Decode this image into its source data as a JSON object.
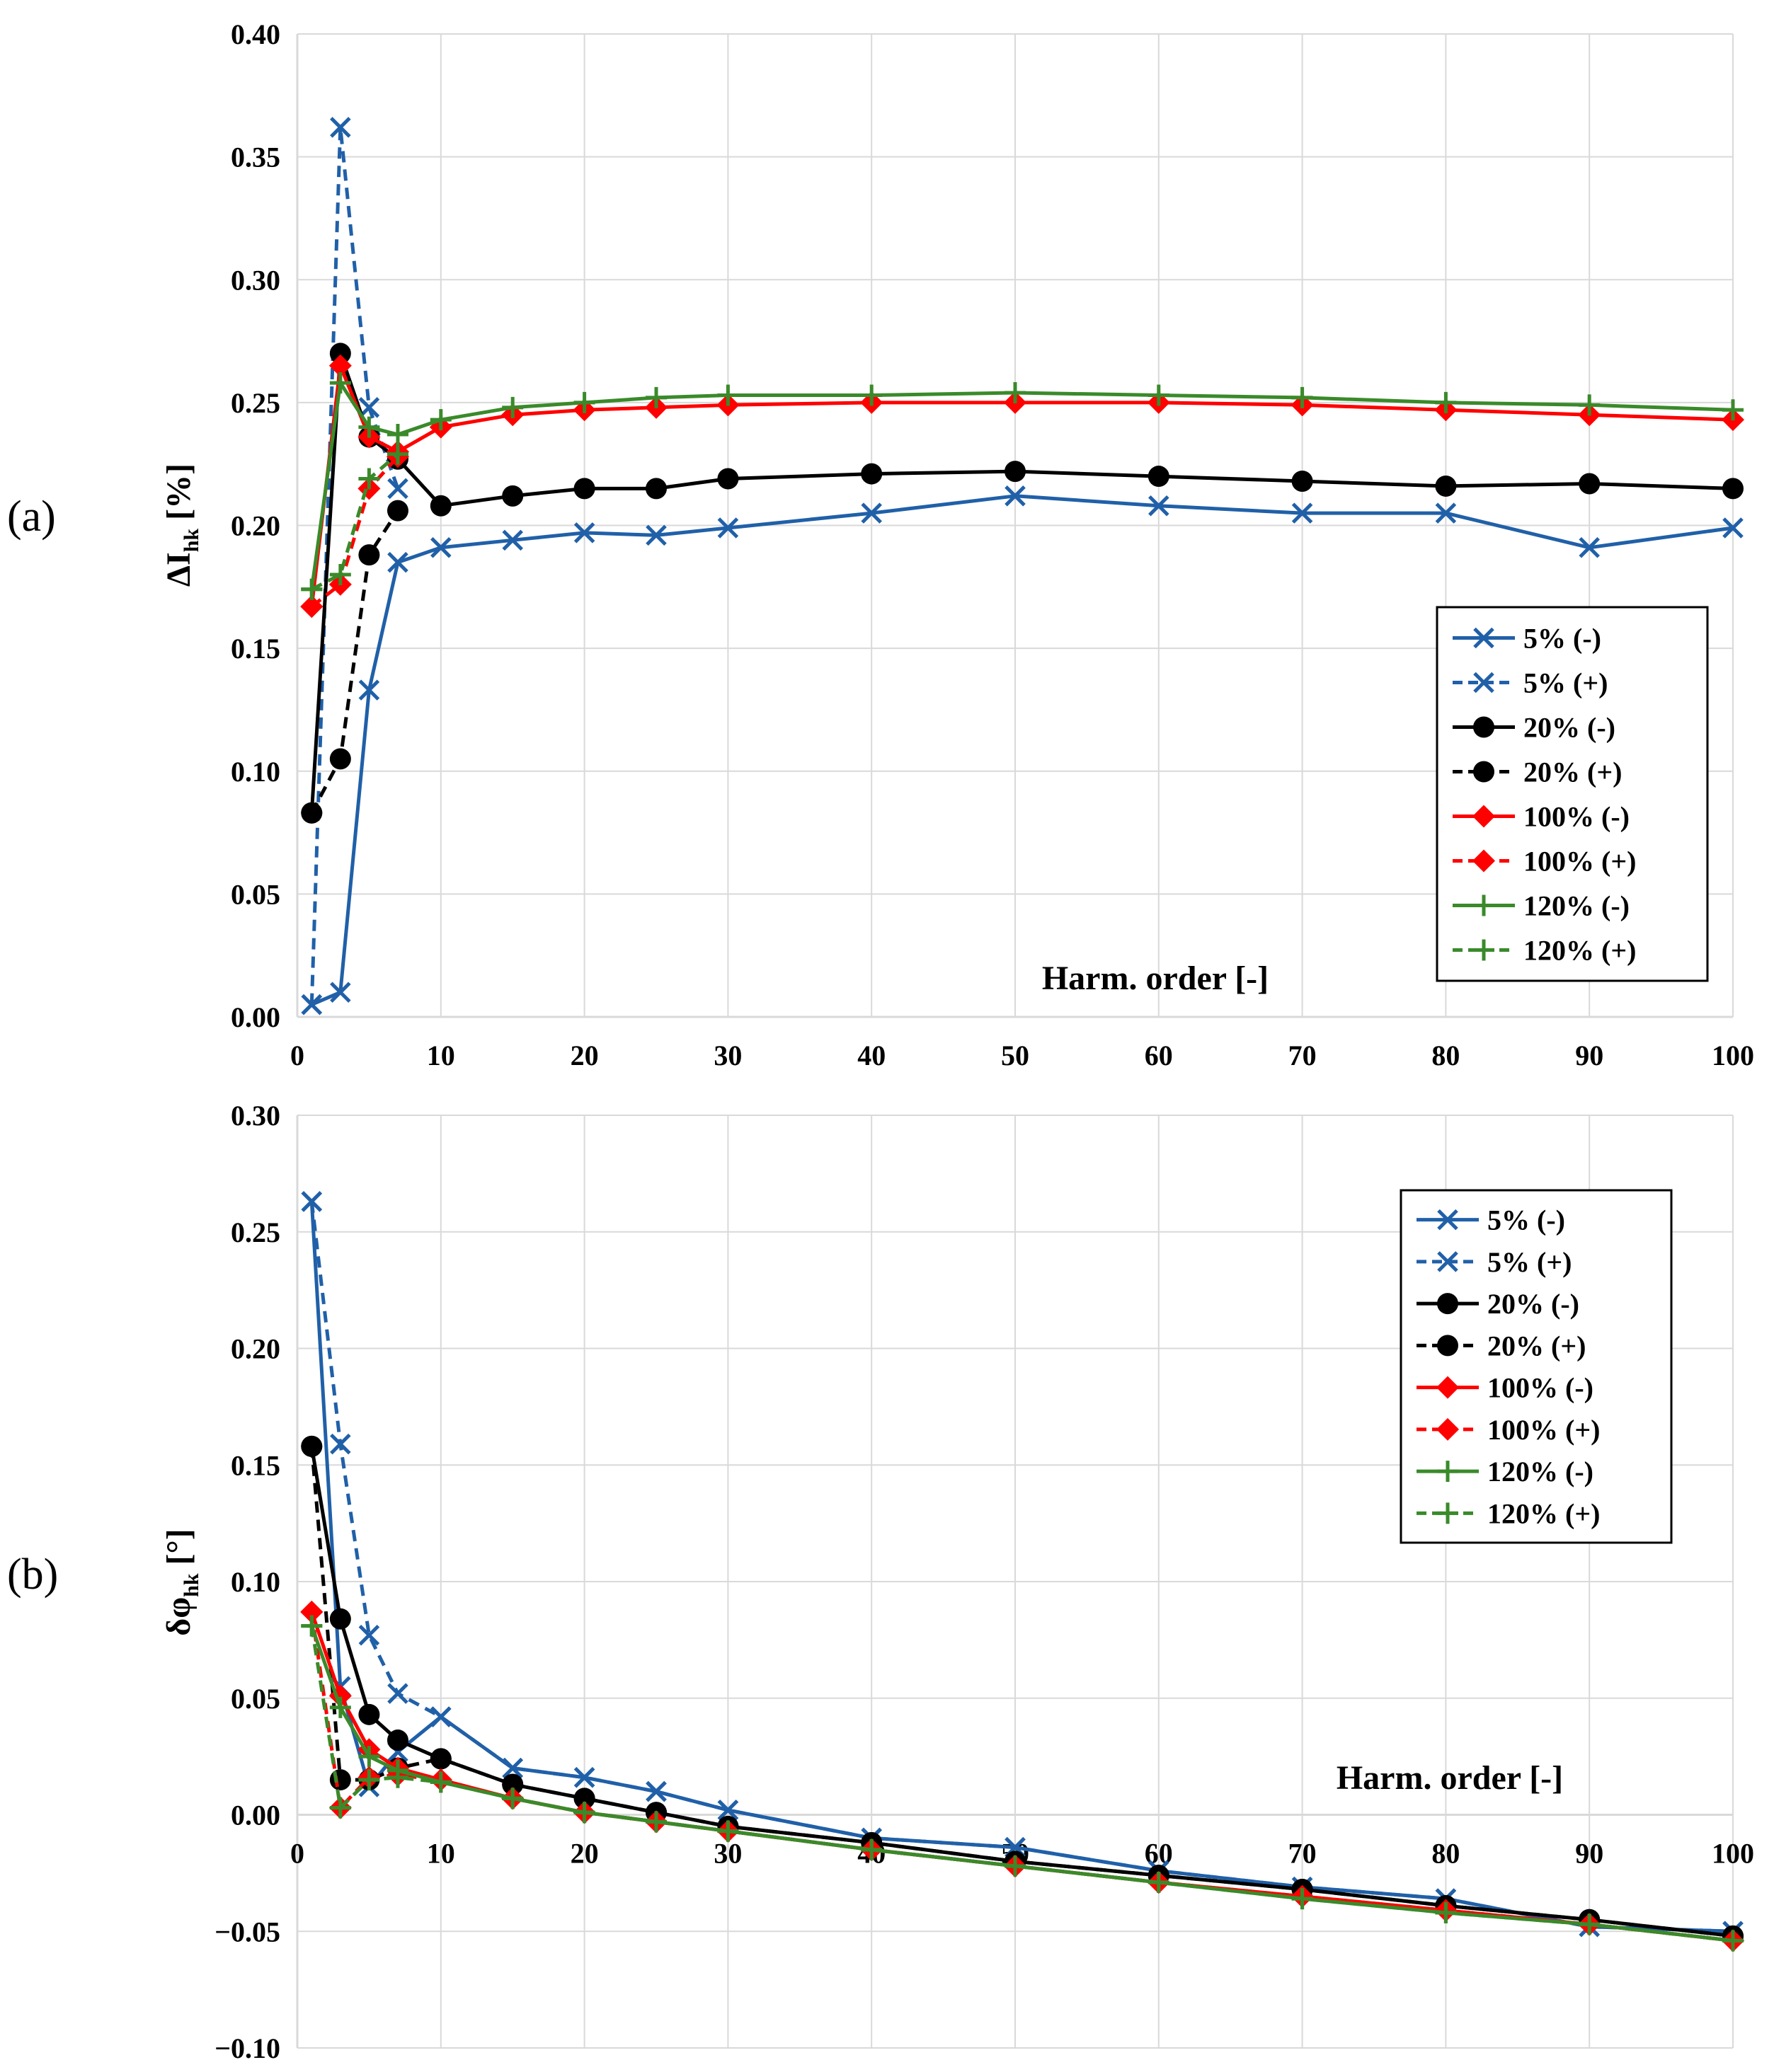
{
  "colors": {
    "blue": "#2060A8",
    "black": "#000000",
    "red": "#FF0000",
    "green": "#3A8A2A",
    "grid": "#D9D9D9"
  },
  "chart_data": [
    {
      "type": "line",
      "panel_label": "(a)",
      "ylabel_main": "ΔI",
      "ylabel_sub": "hk",
      "ylabel_unit": " [%]",
      "xlabel": "Harm. order [-]",
      "xlim": [
        0,
        100
      ],
      "ylim": [
        0,
        0.4
      ],
      "xticks": [
        0,
        10,
        20,
        30,
        40,
        50,
        60,
        70,
        80,
        90,
        100
      ],
      "yticks": [
        0,
        0.05,
        0.1,
        0.15,
        0.2,
        0.25,
        0.3,
        0.35,
        0.4
      ],
      "xtick_labels": [
        "0",
        "10",
        "20",
        "30",
        "40",
        "50",
        "60",
        "70",
        "80",
        "90",
        "100"
      ],
      "ytick_labels": [
        "0.00",
        "0.05",
        "0.10",
        "0.15",
        "0.20",
        "0.25",
        "0.30",
        "0.35",
        "0.40"
      ],
      "grid": true,
      "legend_position": "right",
      "x": [
        1,
        3,
        5,
        7,
        10,
        15,
        20,
        25,
        30,
        40,
        50,
        60,
        70,
        80,
        90,
        100
      ],
      "series": [
        {
          "name": "5% (-)",
          "color": "blue",
          "dash": false,
          "marker": "x",
          "values": [
            0.005,
            0.01,
            0.133,
            0.185,
            0.191,
            0.194,
            0.197,
            0.196,
            0.199,
            0.205,
            0.212,
            0.208,
            0.205,
            0.205,
            0.191,
            0.199
          ]
        },
        {
          "name": "5% (+)",
          "color": "blue",
          "dash": true,
          "marker": "x",
          "values": [
            0.005,
            0.362,
            0.248,
            0.215,
            null,
            null,
            null,
            null,
            null,
            null,
            null,
            null,
            null,
            null,
            null,
            null
          ]
        },
        {
          "name": "20% (-)",
          "color": "black",
          "dash": false,
          "marker": "circle",
          "values": [
            0.083,
            0.27,
            0.236,
            0.227,
            0.208,
            0.212,
            0.215,
            0.215,
            0.219,
            0.221,
            0.222,
            0.22,
            0.218,
            0.216,
            0.217,
            0.215
          ]
        },
        {
          "name": "20% (+)",
          "color": "black",
          "dash": true,
          "marker": "circle",
          "values": [
            0.083,
            0.105,
            0.188,
            0.206,
            null,
            null,
            null,
            null,
            null,
            null,
            null,
            null,
            null,
            null,
            null,
            null
          ]
        },
        {
          "name": "100% (-)",
          "color": "red",
          "dash": false,
          "marker": "diamond",
          "values": [
            0.167,
            0.265,
            0.236,
            0.23,
            0.24,
            0.245,
            0.247,
            0.248,
            0.249,
            0.25,
            0.25,
            0.25,
            0.249,
            0.247,
            0.245,
            0.243
          ]
        },
        {
          "name": "100% (+)",
          "color": "red",
          "dash": true,
          "marker": "diamond",
          "values": [
            0.167,
            0.176,
            0.215,
            0.228,
            null,
            null,
            null,
            null,
            null,
            null,
            null,
            null,
            null,
            null,
            null,
            null
          ]
        },
        {
          "name": "120% (-)",
          "color": "green",
          "dash": false,
          "marker": "plus",
          "values": [
            0.174,
            0.258,
            0.24,
            0.237,
            0.243,
            0.248,
            0.25,
            0.252,
            0.253,
            0.253,
            0.254,
            0.253,
            0.252,
            0.25,
            0.249,
            0.247
          ]
        },
        {
          "name": "120% (+)",
          "color": "green",
          "dash": true,
          "marker": "plus",
          "values": [
            0.174,
            0.18,
            0.219,
            0.229,
            null,
            null,
            null,
            null,
            null,
            null,
            null,
            null,
            null,
            null,
            null,
            null
          ]
        }
      ]
    },
    {
      "type": "line",
      "panel_label": "(b)",
      "ylabel_main": "δφ",
      "ylabel_sub": "hk",
      "ylabel_unit": " [°]",
      "xlabel": "Harm. order [-]",
      "xlim": [
        0,
        100
      ],
      "ylim": [
        -0.1,
        0.3
      ],
      "xticks": [
        0,
        10,
        20,
        30,
        40,
        50,
        60,
        70,
        80,
        90,
        100
      ],
      "yticks": [
        -0.1,
        -0.05,
        0,
        0.05,
        0.1,
        0.15,
        0.2,
        0.25,
        0.3
      ],
      "xtick_labels": [
        "0",
        "10",
        "20",
        "30",
        "40",
        "50",
        "60",
        "70",
        "80",
        "90",
        "100"
      ],
      "ytick_labels": [
        "−0.10",
        "−0.05",
        "0.00",
        "0.05",
        "0.10",
        "0.15",
        "0.20",
        "0.25",
        "0.30"
      ],
      "grid": true,
      "legend_position": "top-right",
      "x": [
        1,
        3,
        5,
        7,
        10,
        15,
        20,
        25,
        30,
        40,
        50,
        60,
        70,
        80,
        90,
        100
      ],
      "series": [
        {
          "name": "5% (-)",
          "color": "blue",
          "dash": false,
          "marker": "x",
          "values": [
            0.263,
            0.055,
            0.012,
            0.027,
            0.042,
            0.02,
            0.016,
            0.01,
            0.002,
            -0.01,
            -0.014,
            -0.024,
            -0.031,
            -0.036,
            -0.048,
            -0.05
          ]
        },
        {
          "name": "5% (+)",
          "color": "blue",
          "dash": true,
          "marker": "x",
          "values": [
            0.263,
            0.159,
            0.077,
            0.052,
            0.042,
            0.02,
            0.016,
            0.01,
            0.002,
            -0.01,
            -0.014,
            -0.024,
            -0.031,
            -0.036,
            -0.048,
            -0.05
          ]
        },
        {
          "name": "20% (-)",
          "color": "black",
          "dash": false,
          "marker": "circle",
          "values": [
            0.158,
            0.084,
            0.043,
            0.032,
            0.024,
            0.013,
            0.007,
            0.001,
            -0.005,
            -0.012,
            -0.02,
            -0.026,
            -0.032,
            -0.039,
            -0.045,
            -0.052
          ]
        },
        {
          "name": "20% (+)",
          "color": "black",
          "dash": true,
          "marker": "circle",
          "values": [
            0.158,
            0.015,
            0.015,
            0.02,
            0.024,
            0.013,
            0.007,
            0.001,
            -0.005,
            -0.012,
            -0.02,
            -0.026,
            -0.032,
            -0.039,
            -0.045,
            -0.052
          ]
        },
        {
          "name": "100% (-)",
          "color": "red",
          "dash": false,
          "marker": "diamond",
          "values": [
            0.087,
            0.051,
            0.028,
            0.02,
            0.015,
            0.007,
            0.001,
            -0.003,
            -0.007,
            -0.015,
            -0.022,
            -0.029,
            -0.035,
            -0.041,
            -0.047,
            -0.054
          ]
        },
        {
          "name": "100% (+)",
          "color": "red",
          "dash": true,
          "marker": "diamond",
          "values": [
            0.087,
            0.003,
            0.016,
            0.017,
            0.015,
            0.007,
            0.001,
            -0.003,
            -0.007,
            -0.015,
            -0.022,
            -0.029,
            -0.035,
            -0.041,
            -0.047,
            -0.054
          ]
        },
        {
          "name": "120% (-)",
          "color": "green",
          "dash": false,
          "marker": "plus",
          "values": [
            0.081,
            0.046,
            0.025,
            0.019,
            0.014,
            0.007,
            0.001,
            -0.003,
            -0.007,
            -0.015,
            -0.022,
            -0.029,
            -0.036,
            -0.042,
            -0.047,
            -0.054
          ]
        },
        {
          "name": "120% (+)",
          "color": "green",
          "dash": true,
          "marker": "plus",
          "values": [
            0.081,
            0.003,
            0.015,
            0.016,
            0.014,
            0.007,
            0.001,
            -0.003,
            -0.007,
            -0.015,
            -0.022,
            -0.029,
            -0.036,
            -0.042,
            -0.047,
            -0.054
          ]
        }
      ]
    }
  ]
}
